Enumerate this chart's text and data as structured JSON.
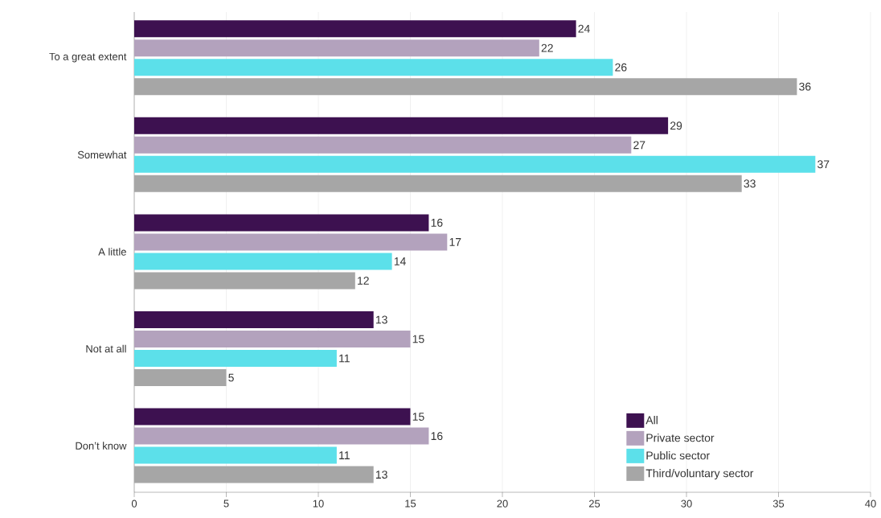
{
  "chart_data": {
    "type": "bar",
    "orientation": "horizontal",
    "categories": [
      "To a great extent",
      "Somewhat",
      "A little",
      "Not at all",
      "Don’t know"
    ],
    "series": [
      {
        "name": "All",
        "color": "#3d1150",
        "values": [
          24,
          29,
          16,
          13,
          15
        ]
      },
      {
        "name": "Private sector",
        "color": "#b3a2bd",
        "values": [
          22,
          27,
          17,
          15,
          16
        ]
      },
      {
        "name": "Public sector",
        "color": "#5ce0ea",
        "values": [
          26,
          37,
          14,
          11,
          11
        ]
      },
      {
        "name": "Third/voluntary sector",
        "color": "#a6a6a6",
        "values": [
          36,
          33,
          12,
          5,
          13
        ]
      }
    ],
    "xlim": [
      0,
      40
    ],
    "xticks": [
      0,
      5,
      10,
      15,
      20,
      25,
      30,
      35,
      40
    ],
    "grid": "x",
    "legend": "bottom right",
    "data_labels": true
  }
}
